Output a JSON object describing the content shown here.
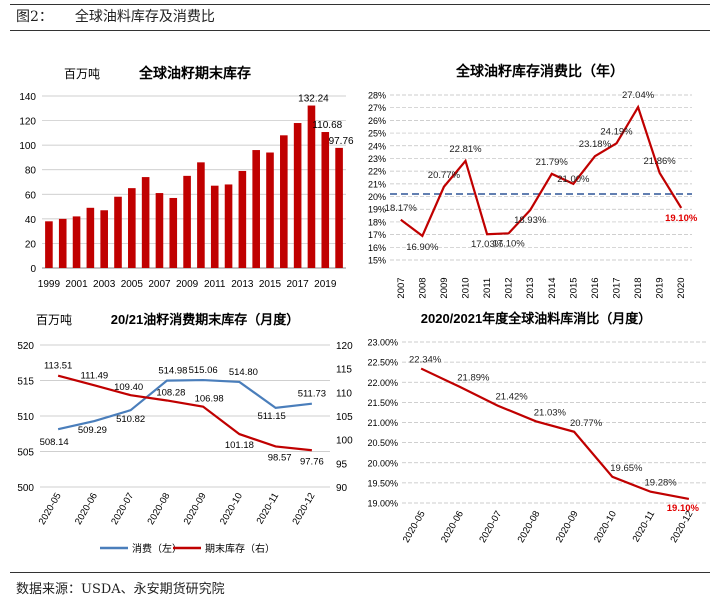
{
  "header": {
    "fig_label": "图2：",
    "fig_title": "全球油料库存及消费比"
  },
  "footer": {
    "source": "数据来源：USDA、永安期货研究院"
  },
  "colors": {
    "bar": "#C00000",
    "line_red": "#C00000",
    "line_blue": "#4A7EBB",
    "ref_blue": "#2F5597",
    "grid": "#bfbfbf"
  },
  "chart_data": [
    {
      "type": "bar",
      "title": "全球油籽期末库存",
      "unit": "百万吨",
      "categories": [
        "1999",
        "2000",
        "2001",
        "2002",
        "2003",
        "2004",
        "2005",
        "2006",
        "2007",
        "2008",
        "2009",
        "2010",
        "2011",
        "2012",
        "2013",
        "2014",
        "2015",
        "2016",
        "2017",
        "2018",
        "2019",
        "2020"
      ],
      "x_tick_labels": [
        "1999",
        "2001",
        "2003",
        "2005",
        "2007",
        "2009",
        "2011",
        "2013",
        "2015",
        "2017",
        "2019"
      ],
      "values": [
        38,
        40,
        42,
        49,
        47,
        58,
        65,
        74,
        61,
        57,
        75,
        86,
        67,
        68,
        79,
        96,
        94,
        108,
        118,
        132.24,
        110.68,
        97.76
      ],
      "data_labels": [
        {
          "index": 19,
          "text": "132.24"
        },
        {
          "index": 20,
          "text": "110.68"
        },
        {
          "index": 21,
          "text": "97.76"
        }
      ],
      "ylim": [
        0,
        140
      ],
      "y_ticks": [
        "0",
        "20",
        "40",
        "60",
        "80",
        "100",
        "120",
        "140"
      ],
      "grid": true
    },
    {
      "type": "line",
      "title": "全球油籽库存消费比（年）",
      "categories": [
        "2007",
        "2008",
        "2009",
        "2010",
        "2011",
        "2012",
        "2013",
        "2014",
        "2015",
        "2016",
        "2017",
        "2018",
        "2019",
        "2020"
      ],
      "values": [
        18.17,
        16.9,
        20.77,
        22.81,
        17.03,
        17.1,
        18.93,
        21.79,
        21.0,
        23.18,
        24.19,
        27.04,
        21.86,
        19.1
      ],
      "labels": [
        "18.17%",
        "16.90%",
        "20.77%",
        "22.81%",
        "17.03%",
        "17.10%",
        "18.93%",
        "21.79%",
        "21.00%",
        "23.18%",
        "24.19%",
        "27.04%",
        "21.86%",
        "19.10%"
      ],
      "reference_line": 20.2,
      "ylim": [
        15,
        28
      ],
      "y_ticks": [
        "15%",
        "16%",
        "17%",
        "18%",
        "19%",
        "20%",
        "21%",
        "22%",
        "23%",
        "24%",
        "25%",
        "26%",
        "27%",
        "28%"
      ],
      "grid": true
    },
    {
      "type": "line",
      "title": "20/21油籽消费期末库存（月度）",
      "unit": "百万吨",
      "categories": [
        "2020-05",
        "2020-06",
        "2020-07",
        "2020-08",
        "2020-09",
        "2020-10",
        "2020-11",
        "2020-12"
      ],
      "series": [
        {
          "name": "消费（左）",
          "axis": "left",
          "values": [
            508.14,
            509.29,
            510.82,
            514.98,
            515.06,
            514.8,
            511.15,
            511.73
          ],
          "labels": [
            "508.14",
            "509.29",
            "510.82",
            "514.98",
            "515.06",
            "514.80",
            "511.15",
            "511.73"
          ]
        },
        {
          "name": "期末库存（右）",
          "axis": "right",
          "values": [
            113.51,
            111.49,
            109.4,
            108.28,
            106.98,
            101.18,
            98.57,
            97.76
          ],
          "labels": [
            "113.51",
            "111.49",
            "109.40",
            "108.28",
            "106.98",
            "101.18",
            "98.57",
            "97.76"
          ]
        }
      ],
      "ylim_left": [
        500,
        520
      ],
      "y_ticks_left": [
        "500",
        "505",
        "510",
        "515",
        "520"
      ],
      "ylim_right": [
        90,
        120
      ],
      "y_ticks_right": [
        "90",
        "95",
        "100",
        "105",
        "110",
        "115",
        "120"
      ],
      "legend": "bottom",
      "grid": true
    },
    {
      "type": "line",
      "title": "2020/2021年度全球油料库消比（月度）",
      "categories": [
        "2020-05",
        "2020-06",
        "2020-07",
        "2020-08",
        "2020-09",
        "2020-10",
        "2020-11",
        "2020-12"
      ],
      "values": [
        22.34,
        21.89,
        21.42,
        21.03,
        20.77,
        19.65,
        19.28,
        19.1
      ],
      "labels": [
        "22.34%",
        "21.89%",
        "21.42%",
        "21.03%",
        "20.77%",
        "19.65%",
        "19.28%",
        "19.10%"
      ],
      "ylim": [
        19.0,
        23.0
      ],
      "y_ticks": [
        "19.00%",
        "19.50%",
        "20.00%",
        "20.50%",
        "21.00%",
        "21.50%",
        "22.00%",
        "22.50%",
        "23.00%"
      ],
      "grid": true
    }
  ]
}
